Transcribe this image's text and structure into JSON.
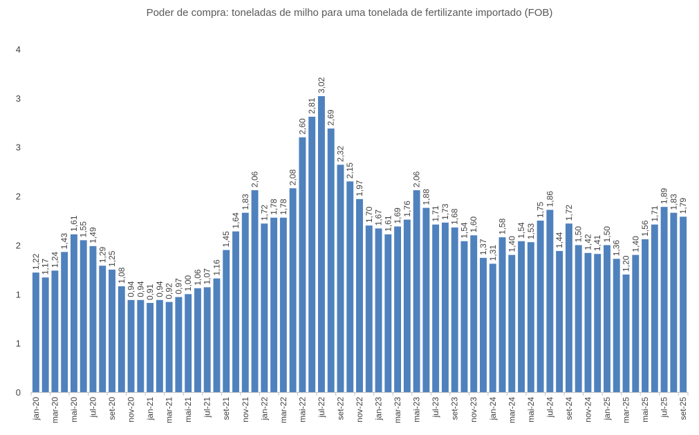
{
  "chart_data": {
    "type": "bar",
    "title": "Poder de compra: toneladas de milho para uma tonelada de fertilizante importado (FOB)",
    "xlabel": "",
    "ylabel": "",
    "ylim": [
      0,
      3.5
    ],
    "y_ticks": [
      0,
      0.5,
      1,
      1.5,
      2,
      2.5,
      3,
      3.5
    ],
    "y_tick_labels": [
      "0",
      "1",
      "1",
      "2",
      "2",
      "3",
      "3",
      "4"
    ],
    "grid": false,
    "legend": "none",
    "bar_color": "#4f81bd",
    "categories": [
      "jan-20",
      "fev-20",
      "mar-20",
      "abr-20",
      "mai-20",
      "jun-20",
      "jul-20",
      "ago-20",
      "set-20",
      "out-20",
      "nov-20",
      "dez-20",
      "jan-21",
      "fev-21",
      "mar-21",
      "abr-21",
      "mai-21",
      "jun-21",
      "jul-21",
      "ago-21",
      "set-21",
      "out-21",
      "nov-21",
      "dez-21",
      "jan-22",
      "fev-22",
      "mar-22",
      "abr-22",
      "mai-22",
      "jun-22",
      "jul-22",
      "ago-22",
      "set-22",
      "out-22",
      "nov-22",
      "dez-22",
      "jan-23",
      "fev-23",
      "mar-23",
      "abr-23",
      "mai-23",
      "jun-23",
      "jul-23",
      "ago-23",
      "set-23",
      "out-23",
      "nov-23",
      "dez-23",
      "jan-24",
      "fev-24",
      "mar-24",
      "abr-24",
      "mai-24",
      "jun-24",
      "jul-24",
      "ago-24",
      "set-24",
      "out-24",
      "nov-24",
      "dez-24",
      "jan-25",
      "fev-25",
      "mar-25",
      "abr-25",
      "mai-25",
      "jun-25",
      "jul-25",
      "ago-25",
      "set-25"
    ],
    "x_tick_labels_shown": "every other category starting at jan-20",
    "values": [
      1.22,
      1.17,
      1.24,
      1.43,
      1.61,
      1.55,
      1.49,
      1.29,
      1.25,
      1.08,
      0.94,
      0.94,
      0.91,
      0.94,
      0.92,
      0.97,
      1.0,
      1.06,
      1.07,
      1.16,
      1.45,
      1.64,
      1.83,
      2.06,
      1.72,
      1.78,
      1.78,
      2.08,
      2.6,
      2.81,
      3.02,
      2.69,
      2.32,
      2.15,
      1.97,
      1.7,
      1.67,
      1.61,
      1.69,
      1.76,
      2.06,
      1.88,
      1.71,
      1.73,
      1.68,
      1.54,
      1.6,
      1.37,
      1.31,
      1.58,
      1.4,
      1.54,
      1.53,
      1.75,
      1.86,
      1.44,
      1.72,
      1.5,
      1.42,
      1.41,
      1.5,
      1.36,
      1.2,
      1.4,
      1.56,
      1.71,
      1.89,
      1.83,
      1.79
    ],
    "data_labels": [
      "1,22",
      "1,17",
      "1,24",
      "1,43",
      "1,61",
      "1,55",
      "1,49",
      "1,29",
      "1,25",
      "1,08",
      "0,94",
      "0,94",
      "0,91",
      "0,94",
      "0,92",
      "0,97",
      "1,00",
      "1,06",
      "1,07",
      "1,16",
      "1,45",
      "1,64",
      "1,83",
      "2,06",
      "1,72",
      "1,78",
      "1,78",
      "2,08",
      "2,60",
      "2,81",
      "3,02",
      "2,69",
      "2,32",
      "2,15",
      "1,97",
      "1,70",
      "1,67",
      "1,61",
      "1,69",
      "1,76",
      "2,06",
      "1,88",
      "1,71",
      "1,73",
      "1,68",
      "1,54",
      "1,60",
      "1,37",
      "1,31",
      "1,58",
      "1,40",
      "1,54",
      "1,53",
      "1,75",
      "1,86",
      "1,44",
      "1,72",
      "1,50",
      "1,42",
      "1,41",
      "1,50",
      "1,36",
      "1,20",
      "1,40",
      "1,56",
      "1,71",
      "1,89",
      "1,83",
      "1,79"
    ]
  }
}
